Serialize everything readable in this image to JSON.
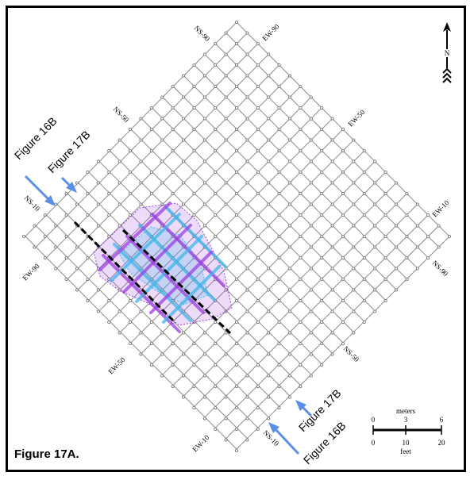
{
  "caption": "Figure 17A.",
  "grid_line_labels": {
    "ns_90": "NS-90",
    "ew_90_top": "EW-90",
    "ns_50_upper": "NS-50",
    "ew_50_right": "EW-50",
    "ns_10_left": "NS-10",
    "ew_10_right": "EW-10",
    "ew_90_left": "EW-90",
    "ns_90_right": "NS-90",
    "ew_50_left": "EW-50",
    "ns_50_lower": "NS-50",
    "ew_10_bottom": "EW-10",
    "ns_10_bottom": "NS-10"
  },
  "figure_refs": {
    "fig16b_top": "Figure 16B",
    "fig17b_top": "Figure 17B",
    "fig17b_bottom": "Figure 17B",
    "fig16b_bottom": "Figure 16B"
  },
  "north_arrow": {
    "label": "N",
    "icon": "north-arrow-icon"
  },
  "scale_bar": {
    "top_unit": "meters",
    "top_ticks": [
      "0",
      "3",
      "6"
    ],
    "bottom_ticks": [
      "0",
      "10",
      "20"
    ],
    "bottom_unit": "feet"
  },
  "colors": {
    "grid": "#8c8c8c",
    "arrow": "#5b8ee6",
    "anomaly_purple": "#9b3fe0",
    "anomaly_cyan": "#3fb6e8",
    "section_line": "#000000"
  }
}
